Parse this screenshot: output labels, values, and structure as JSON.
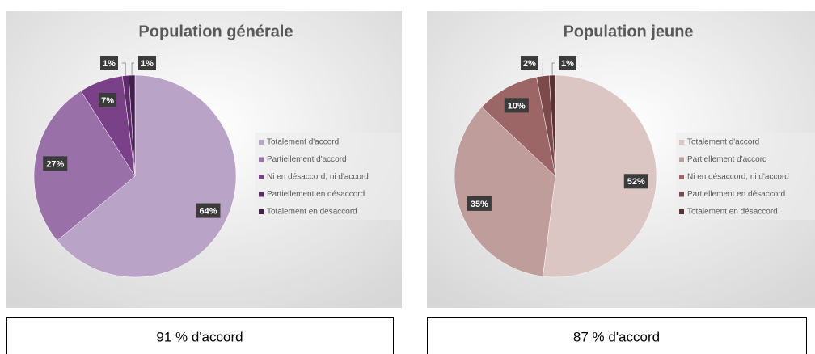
{
  "chart_data": [
    {
      "type": "pie",
      "title": "Population générale",
      "categories": [
        "Totalement d'accord",
        "Partiellement d'accord",
        "Ni en désaccord, ni d'accord",
        "Partiellement en désaccord",
        "Totalement en désaccord"
      ],
      "values": [
        64,
        27,
        7,
        1,
        1
      ],
      "value_labels": [
        "64%",
        "27%",
        "7%",
        "1%",
        "1%"
      ],
      "colors": [
        "#b9a3c6",
        "#9a70a8",
        "#7a4189",
        "#5f2b6c",
        "#421f4d"
      ],
      "annotation": "91 % d'accord"
    },
    {
      "type": "pie",
      "title": "Population jeune",
      "categories": [
        "Totalement d'accord",
        "Partiellement d'accord",
        "Ni en désaccord, ni d'accord",
        "Partiellement en désaccord",
        "Totalement en désaccord"
      ],
      "values": [
        52,
        35,
        10,
        2,
        1
      ],
      "value_labels": [
        "52%",
        "35%",
        "10%",
        "2%",
        "1%"
      ],
      "colors": [
        "#dbc6c4",
        "#bf9d9b",
        "#9c6666",
        "#7c4a4a",
        "#5b3131"
      ],
      "annotation": "87 % d'accord"
    }
  ]
}
